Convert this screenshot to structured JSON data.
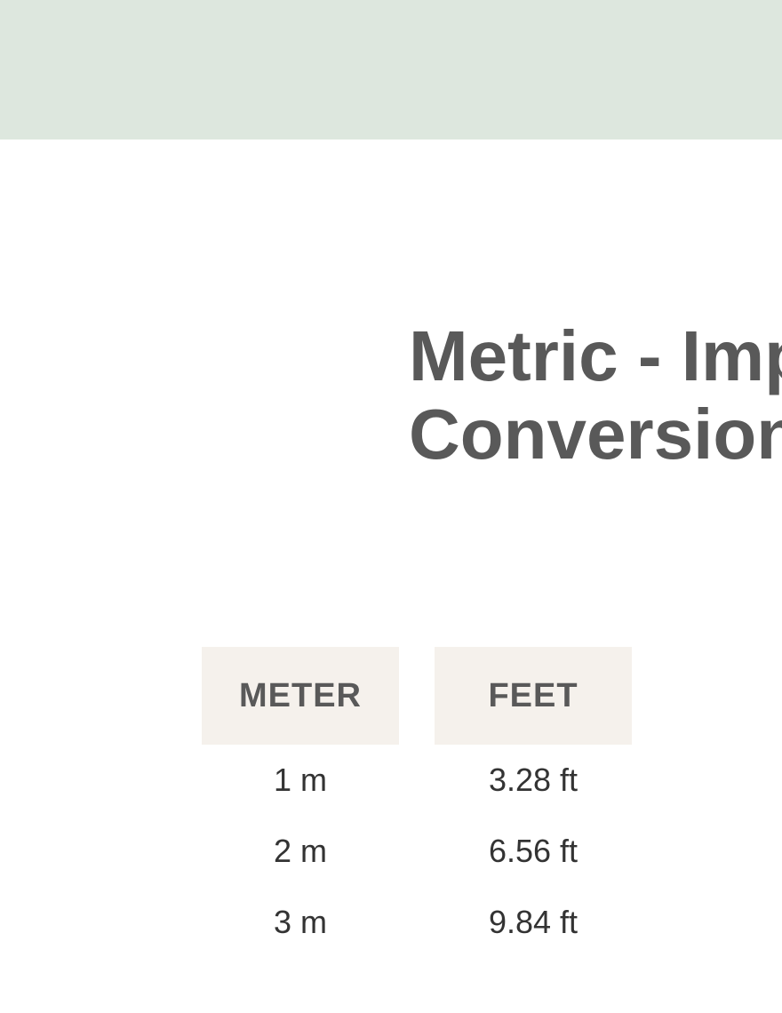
{
  "title_line1": "Metric - Imperial",
  "title_line2": "Conversion Table",
  "colors": {
    "banner_bg": "#dde7de",
    "header_bg": "#f5f1ec",
    "title_text": "#595959",
    "header_text": "#595959",
    "cell_text": "#333333",
    "page_bg": "#ffffff"
  },
  "table": {
    "columns": [
      {
        "header": "METER",
        "cells": [
          "1 m",
          "2 m",
          "3 m"
        ]
      },
      {
        "header": "FEET",
        "cells": [
          "3.28 ft",
          "6.56 ft",
          "9.84 ft"
        ]
      }
    ]
  },
  "typography": {
    "title_fontsize": 80,
    "header_fontsize": 38,
    "cell_fontsize": 36
  }
}
